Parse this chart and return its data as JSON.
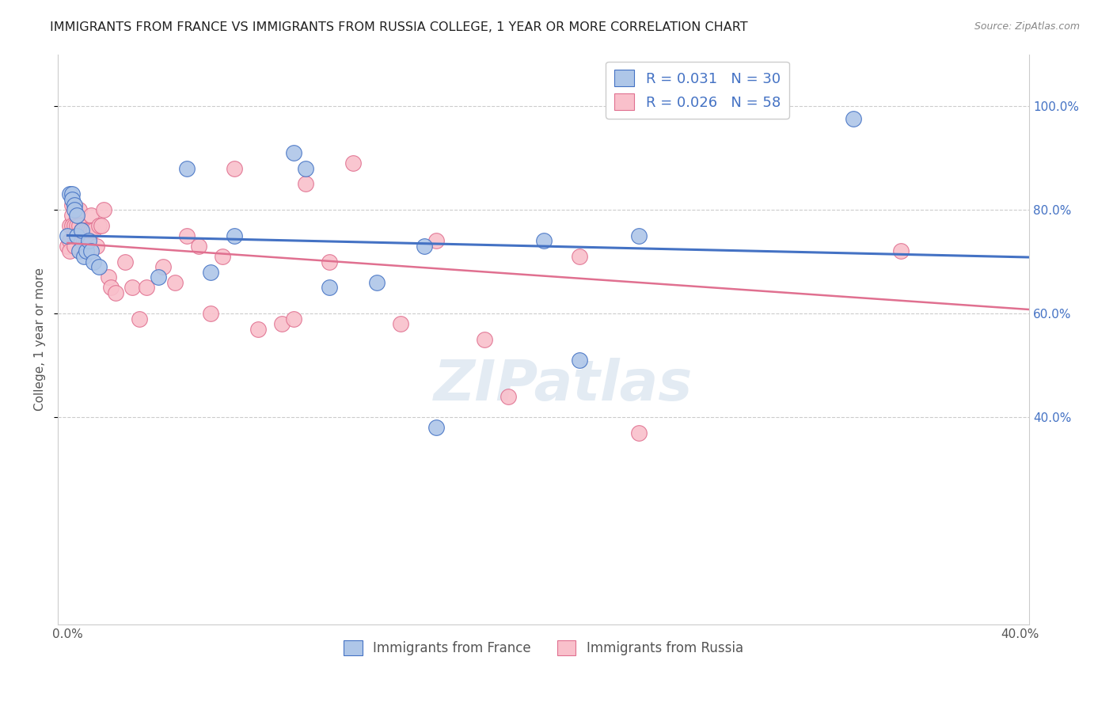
{
  "title": "IMMIGRANTS FROM FRANCE VS IMMIGRANTS FROM RUSSIA COLLEGE, 1 YEAR OR MORE CORRELATION CHART",
  "source": "Source: ZipAtlas.com",
  "ylabel": "College, 1 year or more",
  "xlim": [
    -0.004,
    0.404
  ],
  "ylim": [
    0.0,
    1.1
  ],
  "france_R": 0.031,
  "france_N": 30,
  "russia_R": 0.026,
  "russia_N": 58,
  "france_color": "#AEC6E8",
  "russia_color": "#F9C0CB",
  "france_line_color": "#4472C4",
  "russia_line_color": "#E07090",
  "background_color": "#FFFFFF",
  "grid_color": "#CCCCCC",
  "france_x": [
    0.0,
    0.001,
    0.002,
    0.002,
    0.003,
    0.003,
    0.004,
    0.004,
    0.005,
    0.006,
    0.007,
    0.008,
    0.009,
    0.01,
    0.011,
    0.013,
    0.038,
    0.05,
    0.06,
    0.07,
    0.095,
    0.1,
    0.11,
    0.13,
    0.15,
    0.155,
    0.2,
    0.215,
    0.24,
    0.33
  ],
  "france_y": [
    0.75,
    0.83,
    0.83,
    0.82,
    0.81,
    0.8,
    0.79,
    0.75,
    0.72,
    0.76,
    0.71,
    0.72,
    0.74,
    0.72,
    0.7,
    0.69,
    0.67,
    0.88,
    0.68,
    0.75,
    0.91,
    0.88,
    0.65,
    0.66,
    0.73,
    0.38,
    0.74,
    0.51,
    0.75,
    0.975
  ],
  "russia_x": [
    0.0,
    0.001,
    0.001,
    0.001,
    0.002,
    0.002,
    0.002,
    0.003,
    0.003,
    0.003,
    0.004,
    0.004,
    0.004,
    0.005,
    0.005,
    0.005,
    0.006,
    0.006,
    0.007,
    0.007,
    0.008,
    0.008,
    0.009,
    0.01,
    0.01,
    0.011,
    0.012,
    0.013,
    0.014,
    0.015,
    0.017,
    0.018,
    0.02,
    0.024,
    0.027,
    0.03,
    0.033,
    0.04,
    0.045,
    0.05,
    0.055,
    0.06,
    0.065,
    0.07,
    0.08,
    0.09,
    0.095,
    0.1,
    0.11,
    0.12,
    0.14,
    0.155,
    0.175,
    0.185,
    0.215,
    0.24,
    0.29,
    0.35
  ],
  "russia_y": [
    0.73,
    0.77,
    0.74,
    0.72,
    0.81,
    0.79,
    0.77,
    0.77,
    0.75,
    0.73,
    0.79,
    0.77,
    0.75,
    0.8,
    0.77,
    0.75,
    0.76,
    0.74,
    0.76,
    0.74,
    0.76,
    0.74,
    0.76,
    0.79,
    0.76,
    0.76,
    0.73,
    0.77,
    0.77,
    0.8,
    0.67,
    0.65,
    0.64,
    0.7,
    0.65,
    0.59,
    0.65,
    0.69,
    0.66,
    0.75,
    0.73,
    0.6,
    0.71,
    0.88,
    0.57,
    0.58,
    0.59,
    0.85,
    0.7,
    0.89,
    0.58,
    0.74,
    0.55,
    0.44,
    0.71,
    0.37,
    1.0,
    0.72
  ],
  "bottom_legend_france": "Immigrants from France",
  "bottom_legend_russia": "Immigrants from Russia",
  "right_ytick_labels": [
    "40.0%",
    "60.0%",
    "80.0%",
    "100.0%"
  ],
  "right_ytick_values": [
    0.4,
    0.6,
    0.8,
    1.0
  ]
}
